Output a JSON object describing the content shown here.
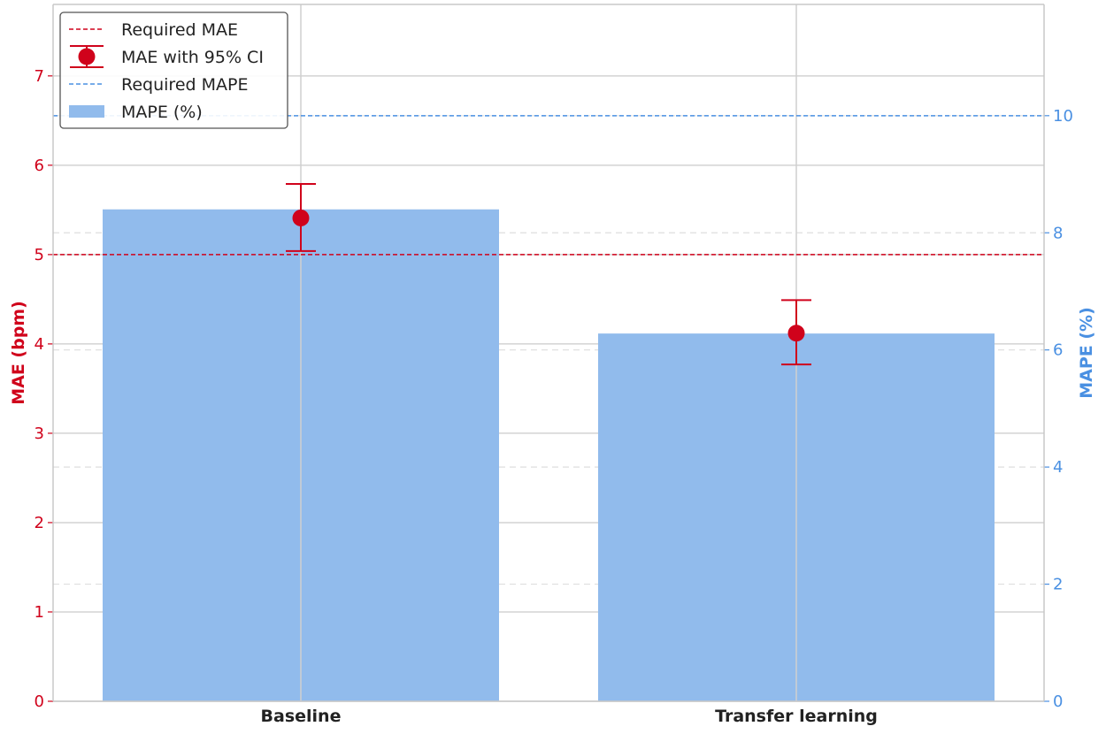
{
  "chart_data": {
    "type": "bar",
    "categories": [
      "Baseline",
      "Transfer learning"
    ],
    "series": [
      {
        "name": "MAPE (%)",
        "axis": "right",
        "kind": "bar",
        "values": [
          8.4,
          6.28
        ]
      },
      {
        "name": "MAE with 95% CI",
        "axis": "left",
        "kind": "errorbar",
        "values": [
          5.41,
          4.12
        ],
        "ci_low": [
          5.04,
          3.77
        ],
        "ci_high": [
          5.79,
          4.49
        ]
      }
    ],
    "reference_lines": [
      {
        "name": "Required MAE",
        "axis": "left",
        "value": 5.0
      },
      {
        "name": "Required MAPE",
        "axis": "right",
        "value": 10.0
      }
    ],
    "ylabel_left": "MAE (bpm)",
    "ylabel_right": "MAPE (%)",
    "ylim_left": [
      0,
      7.8
    ],
    "ylim_right": [
      0,
      11.9
    ],
    "yticks_left": [
      "0",
      "1",
      "2",
      "3",
      "4",
      "5",
      "6",
      "7"
    ],
    "yticks_right": [
      "0",
      "2",
      "4",
      "6",
      "8",
      "10"
    ],
    "grid": true,
    "legend_position": "top-left",
    "colors": {
      "mae": "#d0021b",
      "mape": "#4a90e2",
      "bar_fill": "#91bbec"
    }
  }
}
